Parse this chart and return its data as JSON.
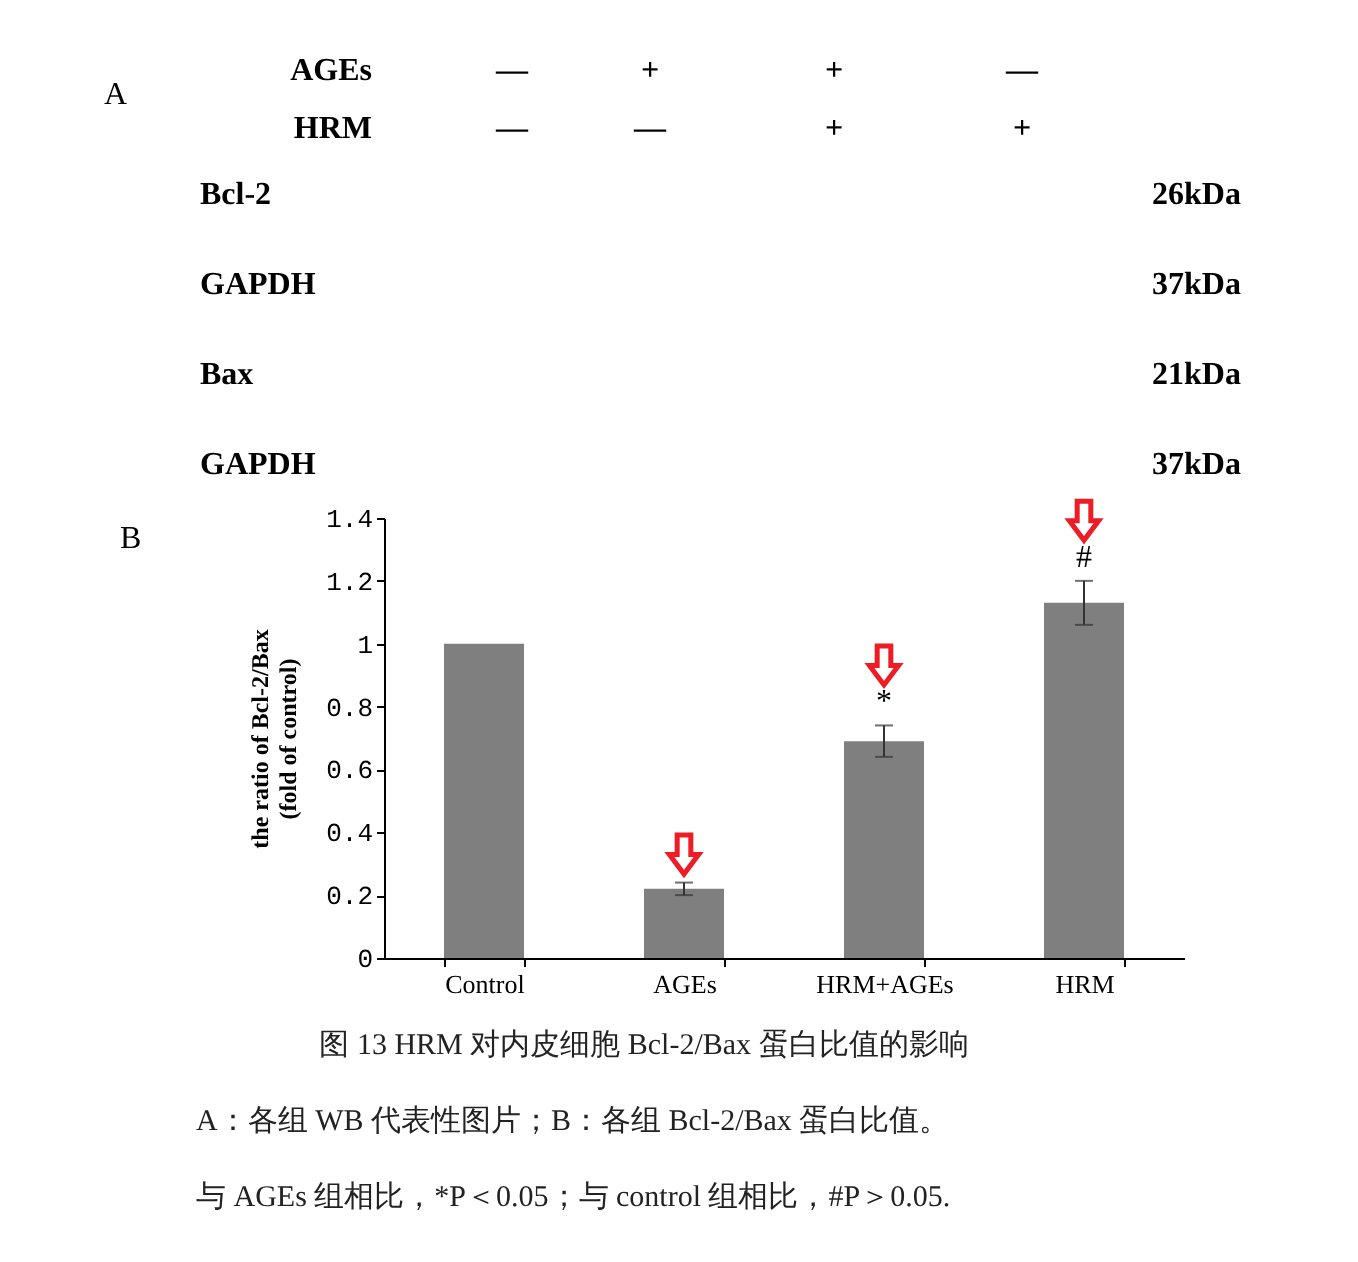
{
  "chart_data": [
    {
      "type": "other",
      "title": "A",
      "annotations": [
        "AGEs",
        "—",
        "+",
        "+",
        "—",
        "HRM",
        "—",
        "—",
        "+",
        "+",
        "Bcl-2",
        "26kDa",
        "GAPDH",
        "37kDa",
        "Bax",
        "21kDa",
        "GAPDH",
        "37kDa"
      ]
    },
    {
      "type": "bar",
      "title": "B",
      "categories": [
        "Control",
        "AGEs",
        "HRM+AGEs",
        "HRM"
      ],
      "values": [
        1,
        0.22,
        0.69,
        1.13
      ],
      "errors": [
        null,
        0.02,
        0.05,
        0.07
      ],
      "value_labels": [
        null,
        null,
        "*",
        "#"
      ],
      "color": "#7f7f7f",
      "ylabel": "the ratio of Bcl-2/Bax\n(fold of control)",
      "ylim": [
        0,
        1.4
      ],
      "yticks": [
        0,
        0.2,
        0.4,
        0.6,
        0.8,
        1,
        1.2,
        1.4
      ],
      "annotations": [
        "图 13 HRM 对内皮细胞 Bcl-2/Bax 蛋白比值的影响",
        "A：各组 WB 代表性图片；B：各组 Bcl-2/Bax 蛋白比值。",
        "与 AGEs 组相比，*P＜0.05；与 control 组相比，#P＞0.05."
      ]
    }
  ]
}
